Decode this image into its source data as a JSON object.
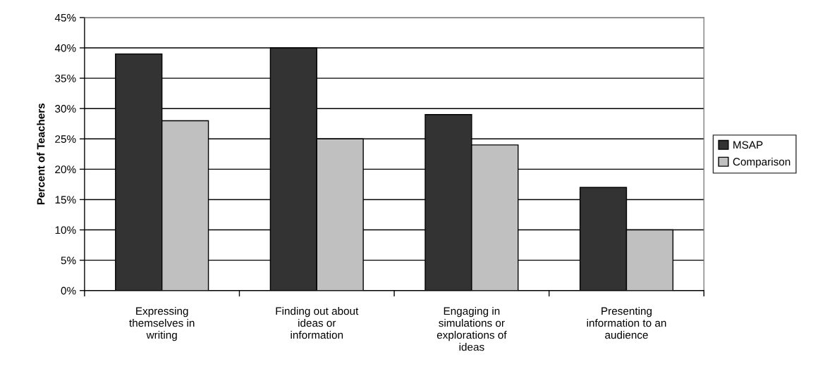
{
  "chart_data": {
    "type": "bar",
    "ylabel": "Percent of Teachers",
    "categories": [
      "Expressing\nthemselves in\nwriting",
      "Finding out about\nideas or\ninformation",
      "Engaging in\nsimulations or\nexplorations of\nideas",
      "Presenting\ninformation to an\naudience"
    ],
    "series": [
      {
        "name": "MSAP",
        "color": "#333333",
        "values": [
          39,
          40,
          29,
          17
        ]
      },
      {
        "name": "Comparison",
        "color": "#c0c0c0",
        "values": [
          28,
          25,
          24,
          10
        ]
      }
    ],
    "ylim": [
      0,
      45
    ],
    "yticks": [
      {
        "value": 0,
        "label": "0%"
      },
      {
        "value": 5,
        "label": "5%"
      },
      {
        "value": 10,
        "label": "10%"
      },
      {
        "value": 15,
        "label": "15%"
      },
      {
        "value": 20,
        "label": "20%"
      },
      {
        "value": 25,
        "label": "25%"
      },
      {
        "value": 30,
        "label": "30%"
      },
      {
        "value": 35,
        "label": "35%"
      },
      {
        "value": 40,
        "label": "40%"
      },
      {
        "value": 45,
        "label": "45%"
      }
    ],
    "grid": "y",
    "legend": "right"
  }
}
